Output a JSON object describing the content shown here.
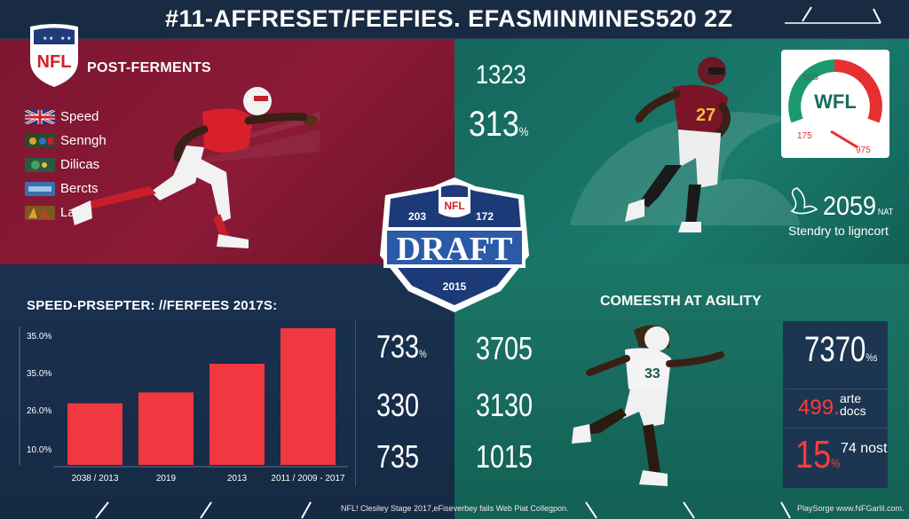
{
  "header": {
    "title": "#11-AFFRESET/FEEFIES. EFASMINMINES520 2Z"
  },
  "top_left": {
    "logo_text": "NFL",
    "label": "POST-FERMENTS",
    "legend": [
      {
        "label": "Speed",
        "flag_color": "#1f3b7a"
      },
      {
        "label": "Senngh",
        "flag_color": "#2a4a2a"
      },
      {
        "label": "Dilicas",
        "flag_color": "#2b5a40"
      },
      {
        "label": "Bercts",
        "flag_color": "#3a6fa8"
      },
      {
        "label": "Lall",
        "flag_color": "#7a5a20"
      }
    ]
  },
  "top_right": {
    "stat1": "1323",
    "stat2": "313",
    "stat2_unit": "%",
    "gauge_label": "WFL",
    "gauge_text_top": "S9G",
    "gauge_left": "175",
    "gauge_right": "975",
    "stat3": "2059",
    "stat3_unit": "NAT",
    "caption": "Stendry to ligncort"
  },
  "draft_logo": {
    "nfl": "NFL",
    "left_num": "203",
    "right_num": "172",
    "word": "DRAFT",
    "year": "2015"
  },
  "bottom_left": {
    "title": "SPEED-PRSEPTER: //FERFEES 2017S:",
    "chart": {
      "y_ticks": [
        "35.0%",
        "35.0%",
        "26.0%",
        "10.0%"
      ],
      "x_labels": [
        "2038 / 2013",
        "2019",
        "2013",
        "2011 / 2009 - 2017"
      ]
    },
    "mid_stats": [
      {
        "value": "733",
        "unit": "%"
      },
      {
        "value": "330",
        "unit": ""
      },
      {
        "value": "735",
        "unit": ""
      }
    ]
  },
  "bottom_right": {
    "title": "COMEESTH AT AGILITY",
    "mid_stats": [
      {
        "value": "3705",
        "unit": ""
      },
      {
        "value": "3130",
        "unit": ""
      },
      {
        "value": "1015",
        "unit": ""
      }
    ],
    "panel": {
      "stat1": "7370",
      "stat1_unit": "%s",
      "red1": "499.",
      "sub1": "arte docs",
      "red2": "15",
      "red2_unit": "%",
      "sub2": "74 nost"
    }
  },
  "footer": {
    "left": "NFL! Clesiley Stage 2017,eFiseverbey fails Web Piat Collegpon.",
    "right": "PlaySorge www.NFGarlil.com."
  },
  "chart_data": {
    "type": "bar",
    "title": "SPEED-PRSEPTER: //FERFEES 2017S:",
    "categories": [
      "2038 / 2013",
      "2019",
      "2013",
      "2011 / 2009 - 2017"
    ],
    "y_ticks": [
      "35.0%",
      "35.0%",
      "26.0%",
      "10.0%"
    ],
    "values": [
      0.45,
      0.53,
      0.74,
      1.0
    ],
    "value_scale": "fraction of tallest bar",
    "bar_color": "#f03840"
  },
  "colors": {
    "maroon": "#8b1a36",
    "teal": "#1a7a6c",
    "navy": "#152a44",
    "accent_red": "#f03840",
    "draft_blue": "#2a4f9a"
  }
}
